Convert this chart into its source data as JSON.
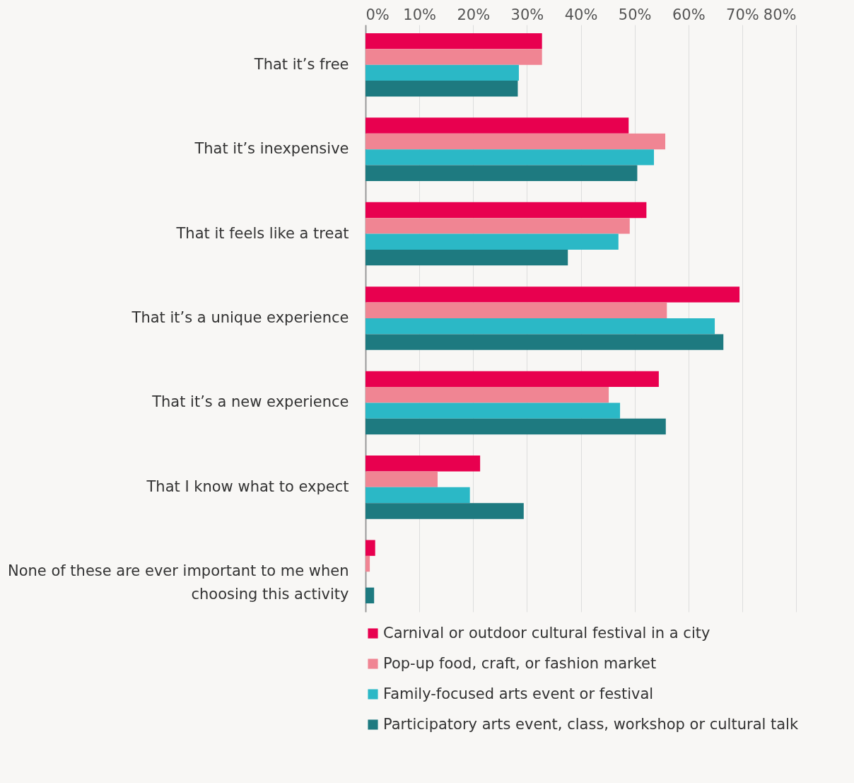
{
  "chart_data": {
    "type": "bar",
    "orientation": "horizontal",
    "categories": [
      "That it’s free",
      "That it’s inexpensive",
      "That it feels like a treat",
      "That it’s a unique experience",
      "That it’s a new experience",
      "That I know what to expect",
      "None of these are ever important to me when\nchoosing this activity"
    ],
    "series": [
      {
        "name": "Carnival or outdoor cultural festival in a city",
        "color": "#e8004f",
        "values": [
          32.8,
          48.9,
          52.2,
          69.5,
          54.5,
          21.3,
          1.8
        ]
      },
      {
        "name": "Pop-up food, craft, or fashion market",
        "color": "#f08593",
        "values": [
          32.8,
          55.7,
          49.1,
          56.0,
          45.2,
          13.4,
          0.8
        ]
      },
      {
        "name": "Family-focused arts event or festival",
        "color": "#2bb8c6",
        "values": [
          28.5,
          53.6,
          47.0,
          64.9,
          47.3,
          19.4,
          0
        ]
      },
      {
        "name": "Participatory arts event, class, workshop or cultural talk",
        "color": "#1e7a80",
        "values": [
          28.3,
          50.5,
          37.6,
          66.5,
          55.8,
          29.4,
          1.6
        ]
      }
    ],
    "xlim": [
      0,
      80
    ],
    "xticks": [
      {
        "value": 0,
        "label": "0%"
      },
      {
        "value": 10,
        "label": "10%"
      },
      {
        "value": 20,
        "label": "20%"
      },
      {
        "value": 30,
        "label": "30%"
      },
      {
        "value": 40,
        "label": "40%"
      },
      {
        "value": 50,
        "label": "50%"
      },
      {
        "value": 60,
        "label": "60%"
      },
      {
        "value": 70,
        "label": "70%"
      },
      {
        "value": 80,
        "label": "80%"
      }
    ],
    "grid": "x",
    "legend": "bottom"
  }
}
